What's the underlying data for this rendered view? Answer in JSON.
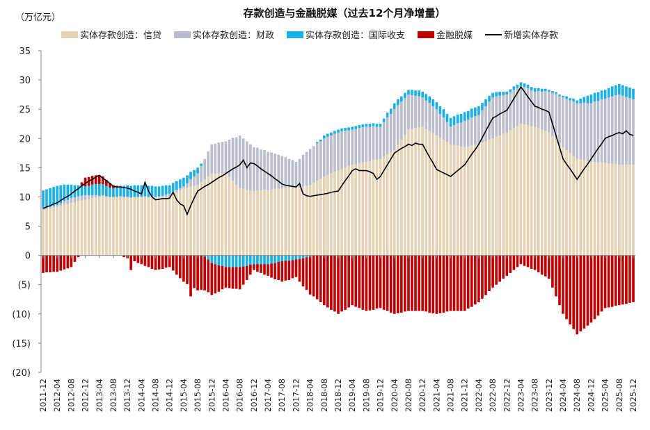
{
  "chart_data": {
    "type": "bar",
    "stacked": true,
    "title": "存款创造与金融脱媒（过去12个月净增量）",
    "unit_label": "（万亿元）",
    "ylim": [
      -20,
      35
    ],
    "yticks": [
      35,
      30,
      25,
      20,
      15,
      10,
      5,
      0,
      -5,
      -10,
      -15,
      -20
    ],
    "ytick_labels": [
      "35",
      "30",
      "25",
      "20",
      "15",
      "10",
      "5",
      "0",
      "(5)",
      "(10)",
      "(15)",
      "(20)"
    ],
    "grid": false,
    "legend_position": "top",
    "frequency": "monthly",
    "x_tick_labels": [
      "2011-12",
      "2012-04",
      "2012-08",
      "2012-12",
      "2013-04",
      "2013-08",
      "2013-12",
      "2014-04",
      "2014-08",
      "2014-12",
      "2015-04",
      "2015-08",
      "2015-12",
      "2016-04",
      "2016-08",
      "2016-12",
      "2017-04",
      "2017-08",
      "2017-12",
      "2018-04",
      "2018-08",
      "2018-12",
      "2019-04",
      "2019-08",
      "2019-12",
      "2020-04",
      "2020-08",
      "2020-12",
      "2021-04",
      "2021-08",
      "2021-12",
      "2022-04",
      "2022-08",
      "2022-12",
      "2023-04",
      "2023-08",
      "2023-12",
      "2024-04",
      "2024-08",
      "2024-12",
      "2025-04",
      "2025-08",
      "2025-12"
    ],
    "series": [
      {
        "name": "实体存款创造：信贷",
        "type": "bar",
        "color": "#E4D2B4",
        "values": [
          7.8,
          7.9,
          8.0,
          8.2,
          8.3,
          8.5,
          8.7,
          8.8,
          9.0,
          9.1,
          9.3,
          9.4,
          9.5,
          9.6,
          9.8,
          9.9,
          10.0,
          10.1,
          10.0,
          9.9,
          10.0,
          10.0,
          10.1,
          10.0,
          10.0,
          9.9,
          10.0,
          10.0,
          10.0,
          10.1,
          10.0,
          10.0,
          10.0,
          10.0,
          9.9,
          10.0,
          10.0,
          10.4,
          10.8,
          11.1,
          11.5,
          11.6,
          11.8,
          11.9,
          12.0,
          12.5,
          13.0,
          13.5,
          14.0,
          14.0,
          14.0,
          14.0,
          14.0,
          13.4,
          12.8,
          12.1,
          11.5,
          11.4,
          11.2,
          11.1,
          11.0,
          11.1,
          11.1,
          11.2,
          11.2,
          11.3,
          11.4,
          11.4,
          11.5,
          11.5,
          11.5,
          11.5,
          11.5,
          11.6,
          11.8,
          11.9,
          12.0,
          12.4,
          12.8,
          13.1,
          13.5,
          13.8,
          14.0,
          14.3,
          14.5,
          14.8,
          15.0,
          15.3,
          15.5,
          15.6,
          15.8,
          15.9,
          16.0,
          16.1,
          16.3,
          16.4,
          16.5,
          16.9,
          17.3,
          17.6,
          18.0,
          18.9,
          19.8,
          20.6,
          21.5,
          21.6,
          21.8,
          21.9,
          22.0,
          21.6,
          21.3,
          20.9,
          20.5,
          20.1,
          19.8,
          19.4,
          19.0,
          18.9,
          18.8,
          18.6,
          18.5,
          18.6,
          18.8,
          18.9,
          19.0,
          19.3,
          19.5,
          19.8,
          20.0,
          20.3,
          20.5,
          20.8,
          21.0,
          21.4,
          21.8,
          22.1,
          22.5,
          22.4,
          22.3,
          22.1,
          22.0,
          21.8,
          21.5,
          21.3,
          21.0,
          20.4,
          19.8,
          19.1,
          18.5,
          18.0,
          17.5,
          17.0,
          16.5,
          16.4,
          16.3,
          16.1,
          16.0,
          16.0,
          15.9,
          15.9,
          15.8,
          15.7,
          15.7,
          15.6,
          15.5,
          15.5,
          15.5,
          15.5,
          15.5
        ]
      },
      {
        "name": "实体存款创造：财政",
        "type": "bar",
        "color": "#BBBDCC",
        "values": [
          0.3,
          0.3,
          0.3,
          0.3,
          0.3,
          0.4,
          0.6,
          0.7,
          0.8,
          0.8,
          0.8,
          0.8,
          0.8,
          0.7,
          0.5,
          0.4,
          0.2,
          0.2,
          0.1,
          0.1,
          0,
          0,
          0,
          0,
          0,
          0,
          0,
          0,
          0,
          0,
          0,
          0,
          0,
          0.1,
          0.3,
          0.4,
          0.5,
          0.5,
          0.4,
          0.4,
          0.3,
          0.7,
          1.2,
          1.6,
          2,
          2.8,
          3.5,
          4.3,
          5,
          5.1,
          5.3,
          5.4,
          5.5,
          6.4,
          7.3,
          8.1,
          9,
          8.6,
          8.3,
          7.9,
          7.5,
          7.3,
          7,
          6.8,
          6.5,
          6.3,
          6,
          5.8,
          5.5,
          5.3,
          5,
          4.8,
          4.5,
          4.9,
          5.4,
          5.8,
          6.2,
          6.3,
          6.4,
          6.4,
          6.5,
          6.5,
          6.5,
          6.5,
          6.5,
          6.4,
          6.3,
          6.1,
          6,
          6,
          6,
          6,
          6,
          5.9,
          5.8,
          5.6,
          5.5,
          5.9,
          6.3,
          6.6,
          7,
          6.8,
          6.5,
          6.3,
          6,
          5.8,
          5.5,
          5.3,
          5,
          4.9,
          4.8,
          4.6,
          4.5,
          4.1,
          3.8,
          3.4,
          3,
          3.4,
          3.8,
          4.1,
          4.5,
          4.6,
          4.8,
          4.9,
          5,
          5.5,
          6,
          6.5,
          7,
          6.9,
          6.8,
          6.6,
          6.5,
          6.5,
          6.5,
          6.5,
          6.5,
          6.4,
          6.3,
          6.1,
          6,
          6.3,
          6.5,
          6.8,
          7,
          7.4,
          7.8,
          8.1,
          8.5,
          8.8,
          9,
          9.3,
          9.5,
          9.6,
          9.8,
          9.9,
          10,
          10.3,
          10.5,
          10.8,
          11,
          11.3,
          11.5,
          11.8,
          12,
          11.8,
          11.6,
          11.4,
          11.2
        ]
      },
      {
        "name": "实体存款创造：国际收支",
        "type": "bar",
        "color": "#19B0E8",
        "values": [
          3,
          3.1,
          3.2,
          3.2,
          3.3,
          3.1,
          2.8,
          2.6,
          2.3,
          2.1,
          1.9,
          1.7,
          1.5,
          1.6,
          1.8,
          1.9,
          2,
          1.9,
          1.8,
          1.6,
          1.5,
          1.6,
          1.8,
          1.9,
          2,
          2,
          2,
          2,
          2,
          2,
          1.9,
          1.9,
          1.8,
          1.7,
          1.7,
          1.6,
          1.5,
          1.5,
          1.5,
          1.5,
          1.5,
          1.4,
          1.3,
          1.1,
          1,
          0.4,
          -0.2,
          -0.7,
          -1.3,
          -1.5,
          -1.7,
          -1.8,
          -2,
          -2,
          -2,
          -2,
          -2,
          -1.9,
          -1.8,
          -1.6,
          -1.5,
          -1.5,
          -1.5,
          -1.5,
          -1.5,
          -1.4,
          -1.3,
          -1.1,
          -1,
          -0.9,
          -0.9,
          -0.8,
          -0.7,
          -0.6,
          -0.5,
          -0.3,
          -0.2,
          0,
          0.2,
          0.3,
          0.5,
          0.5,
          0.5,
          0.5,
          0.5,
          0.5,
          0.5,
          0.5,
          0.5,
          0.5,
          0.5,
          0.5,
          0.5,
          0.5,
          0.5,
          0.5,
          0.5,
          0.6,
          0.8,
          0.9,
          1,
          1,
          0.9,
          0.9,
          0.8,
          0.9,
          0.9,
          1,
          1,
          1.1,
          1.1,
          1.2,
          1.2,
          1.3,
          1.4,
          1.4,
          1.5,
          1.5,
          1.5,
          1.5,
          1.5,
          1.5,
          1.5,
          1.5,
          1.5,
          1.3,
          1.2,
          1,
          0.8,
          0.7,
          0.7,
          0.6,
          0.5,
          0.5,
          0.6,
          0.6,
          0.6,
          0.6,
          0.6,
          0.6,
          0.6,
          0.5,
          0.5,
          0.4,
          0.3,
          0.3,
          0.3,
          0.3,
          0.3,
          0.4,
          0.4,
          0.5,
          0.5,
          0.8,
          1,
          1.3,
          1.5,
          1.5,
          1.5,
          1.5,
          1.5,
          1.6,
          1.7,
          1.7,
          1.8,
          1.8,
          1.8,
          1.8,
          1.8
        ]
      },
      {
        "name": "金融脱媒",
        "type": "bar",
        "color": "#C00000",
        "values": [
          -3,
          -2.9,
          -2.9,
          -2.8,
          -2.8,
          -2.6,
          -2.4,
          -2.2,
          -2,
          -1.1,
          -0.3,
          0.6,
          1.5,
          1.5,
          1.5,
          1.5,
          1.5,
          1.3,
          1,
          0.8,
          0.5,
          0.3,
          0,
          -0.3,
          -0.5,
          -2.5,
          -1,
          -1.3,
          -1.5,
          -1.8,
          -2,
          -2.3,
          -2.5,
          -2.4,
          -2.3,
          -2.1,
          -2,
          -2.6,
          -3.3,
          -3.9,
          -4.5,
          -4.9,
          -7,
          -5.6,
          -6,
          -5.9,
          -5.8,
          -5.6,
          -5.5,
          -5,
          -4.5,
          -4,
          -3.5,
          -3.6,
          -3.7,
          -3.7,
          -3.8,
          -3.1,
          -2.4,
          -1.7,
          -1,
          -1.3,
          -1.5,
          -1.8,
          -2,
          -2.4,
          -2.8,
          -3.1,
          -3.5,
          -3.4,
          -3.3,
          -3.1,
          -3,
          -3.9,
          -4.8,
          -5.6,
          -6.5,
          -7,
          -7.5,
          -8,
          -8.5,
          -8.9,
          -9.3,
          -9.6,
          -10,
          -9.6,
          -9.3,
          -8.9,
          -8.5,
          -8.8,
          -9,
          -9.3,
          -9.5,
          -9.4,
          -9.3,
          -9.1,
          -9,
          -9.3,
          -9.5,
          -9.8,
          -10,
          -9.9,
          -9.8,
          -9.6,
          -9.5,
          -9.5,
          -9.5,
          -9.5,
          -9.5,
          -9.6,
          -9.8,
          -9.9,
          -10,
          -9.9,
          -9.8,
          -9.6,
          -9.5,
          -9.5,
          -9.5,
          -9.5,
          -9.5,
          -9.1,
          -8.8,
          -8.4,
          -8,
          -7.4,
          -6.8,
          -6.1,
          -5.5,
          -5,
          -4.5,
          -4,
          -3.5,
          -3,
          -2.5,
          -2,
          -1.5,
          -1.8,
          -2,
          -2.3,
          -2.5,
          -2.9,
          -3.3,
          -3.6,
          -4,
          -5.5,
          -7,
          -8.5,
          -10,
          -10.9,
          -11.8,
          -12.6,
          -13.5,
          -13,
          -12.5,
          -12,
          -11.5,
          -10.9,
          -10.3,
          -9.6,
          -9,
          -8.9,
          -8.8,
          -8.6,
          -8.5,
          -8.4,
          -8.3,
          -8.1,
          -8
        ]
      },
      {
        "name": "新增实体存款",
        "type": "line",
        "color": "#000000",
        "values": [
          8,
          8.3,
          8.5,
          8.8,
          9,
          9.4,
          9.8,
          10.1,
          10.5,
          11,
          11.4,
          11.9,
          12.3,
          12.7,
          13,
          13.4,
          13.7,
          13.2,
          12.8,
          12.3,
          11.8,
          11.7,
          11.7,
          11.6,
          11.5,
          11.3,
          11,
          10.8,
          10.5,
          12.5,
          11,
          10,
          9.5,
          9.6,
          9.7,
          9.7,
          9.8,
          10.8,
          9.5,
          8.8,
          8.5,
          7,
          8.5,
          9.8,
          11,
          11.4,
          11.8,
          12.1,
          12.5,
          12.9,
          13.3,
          13.6,
          14,
          14.4,
          14.8,
          15.1,
          15.5,
          16.3,
          15,
          15.8,
          15.7,
          15.3,
          14.8,
          14.4,
          14,
          13.6,
          13.1,
          12.7,
          12.2,
          12,
          11.9,
          11.8,
          11.7,
          12.3,
          10.5,
          10.2,
          10.1,
          10.2,
          10.3,
          10.4,
          10.5,
          10.6,
          10.8,
          10.9,
          11,
          11.9,
          12.8,
          13.6,
          14.5,
          14.8,
          14.5,
          14.5,
          14.5,
          14.3,
          14,
          13,
          13.5,
          14.5,
          15.5,
          16.5,
          17.5,
          17.9,
          18.3,
          18.6,
          19,
          18.8,
          19.2,
          19,
          19,
          17.9,
          16.8,
          15.8,
          14.7,
          14.4,
          14.1,
          13.8,
          13.5,
          14,
          14.5,
          15,
          15.5,
          16.4,
          17.3,
          18.1,
          19,
          20.1,
          21.3,
          22.4,
          23.5,
          23.8,
          24.2,
          24.5,
          24.8,
          25.8,
          26.8,
          27.8,
          28.8,
          28,
          27.1,
          26.3,
          25.5,
          25.3,
          25,
          24.8,
          24.5,
          22.5,
          20.5,
          18.5,
          16.5,
          15.6,
          14.8,
          13.9,
          13,
          13.9,
          14.8,
          15.6,
          16.5,
          17.4,
          18.3,
          19.1,
          20,
          20.3,
          20.5,
          20.8,
          21,
          20.8,
          21.3,
          20.7,
          20.5
        ]
      }
    ]
  }
}
